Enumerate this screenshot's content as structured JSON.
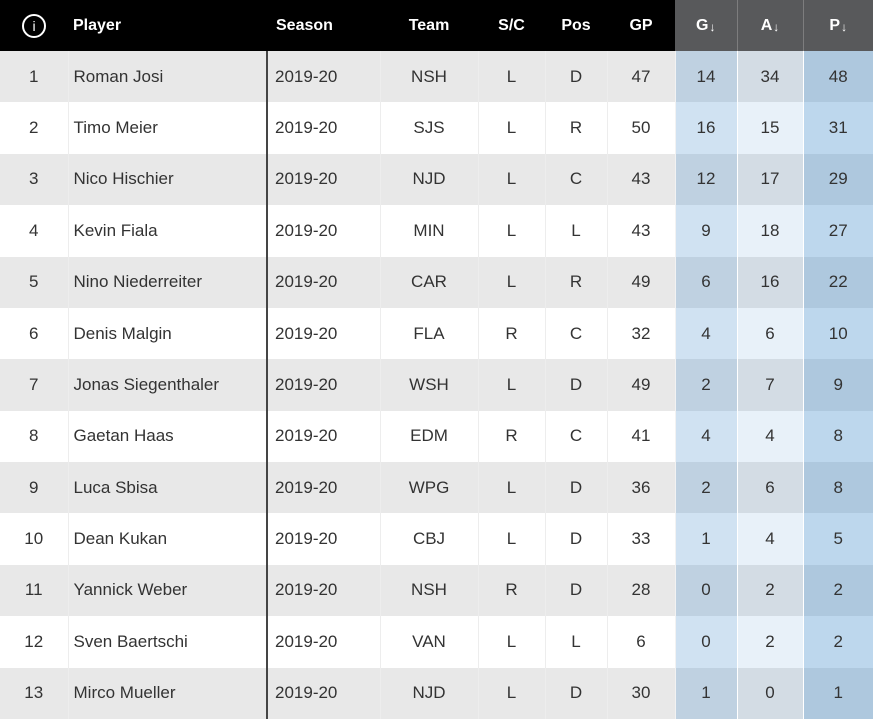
{
  "table": {
    "sort_arrow": "↓",
    "columns": [
      {
        "key": "rank",
        "label": "",
        "align": "center",
        "sorted": false
      },
      {
        "key": "player",
        "label": "Player",
        "align": "left",
        "sorted": false
      },
      {
        "key": "season",
        "label": "Season",
        "align": "left",
        "sorted": false
      },
      {
        "key": "team",
        "label": "Team",
        "align": "center",
        "sorted": false
      },
      {
        "key": "sc",
        "label": "S/C",
        "align": "center",
        "sorted": false
      },
      {
        "key": "pos",
        "label": "Pos",
        "align": "center",
        "sorted": false
      },
      {
        "key": "gp",
        "label": "GP",
        "align": "center",
        "sorted": false
      },
      {
        "key": "g",
        "label": "G",
        "align": "center",
        "sorted": true
      },
      {
        "key": "a",
        "label": "A",
        "align": "center",
        "sorted": true
      },
      {
        "key": "p",
        "label": "P",
        "align": "center",
        "sorted": true
      }
    ],
    "rows": [
      [
        "1",
        "Roman Josi",
        "2019-20",
        "NSH",
        "L",
        "D",
        "47",
        "14",
        "34",
        "48"
      ],
      [
        "2",
        "Timo Meier",
        "2019-20",
        "SJS",
        "L",
        "R",
        "50",
        "16",
        "15",
        "31"
      ],
      [
        "3",
        "Nico Hischier",
        "2019-20",
        "NJD",
        "L",
        "C",
        "43",
        "12",
        "17",
        "29"
      ],
      [
        "4",
        "Kevin Fiala",
        "2019-20",
        "MIN",
        "L",
        "L",
        "43",
        "9",
        "18",
        "27"
      ],
      [
        "5",
        "Nino Niederreiter",
        "2019-20",
        "CAR",
        "L",
        "R",
        "49",
        "6",
        "16",
        "22"
      ],
      [
        "6",
        "Denis Malgin",
        "2019-20",
        "FLA",
        "R",
        "C",
        "32",
        "4",
        "6",
        "10"
      ],
      [
        "7",
        "Jonas Siegenthaler",
        "2019-20",
        "WSH",
        "L",
        "D",
        "49",
        "2",
        "7",
        "9"
      ],
      [
        "8",
        "Gaetan Haas",
        "2019-20",
        "EDM",
        "R",
        "C",
        "41",
        "4",
        "4",
        "8"
      ],
      [
        "9",
        "Luca Sbisa",
        "2019-20",
        "WPG",
        "L",
        "D",
        "36",
        "2",
        "6",
        "8"
      ],
      [
        "10",
        "Dean Kukan",
        "2019-20",
        "CBJ",
        "L",
        "D",
        "33",
        "1",
        "4",
        "5"
      ],
      [
        "11",
        "Yannick Weber",
        "2019-20",
        "NSH",
        "R",
        "D",
        "28",
        "0",
        "2",
        "2"
      ],
      [
        "12",
        "Sven Baertschi",
        "2019-20",
        "VAN",
        "L",
        "L",
        "6",
        "0",
        "2",
        "2"
      ],
      [
        "13",
        "Mirco Mueller",
        "2019-20",
        "NJD",
        "L",
        "D",
        "30",
        "1",
        "0",
        "1"
      ]
    ]
  },
  "icons": {
    "info": "i"
  },
  "colors": {
    "header_bg": "#000000",
    "header_text": "#ffffff",
    "sorted_header_bg": "#58595b",
    "row_stripe": "#e8e8e8",
    "row_bg": "#ffffff",
    "highlight_blue": "#428bca",
    "cell_text": "#333333",
    "divider_dark": "#454545"
  }
}
